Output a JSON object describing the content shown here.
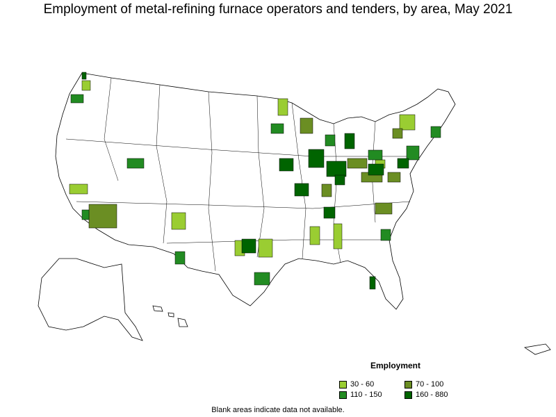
{
  "title": "Employment of metal-refining furnace operators and tenders, by area, May 2021",
  "legend": {
    "title": "Employment",
    "items": [
      {
        "label": "30 - 60",
        "color": "#9acd32"
      },
      {
        "label": "70 - 100",
        "color": "#6b8e23"
      },
      {
        "label": "110 - 150",
        "color": "#228b22"
      },
      {
        "label": "160 - 880",
        "color": "#006400"
      }
    ]
  },
  "note": "Blank areas indicate data not available."
}
